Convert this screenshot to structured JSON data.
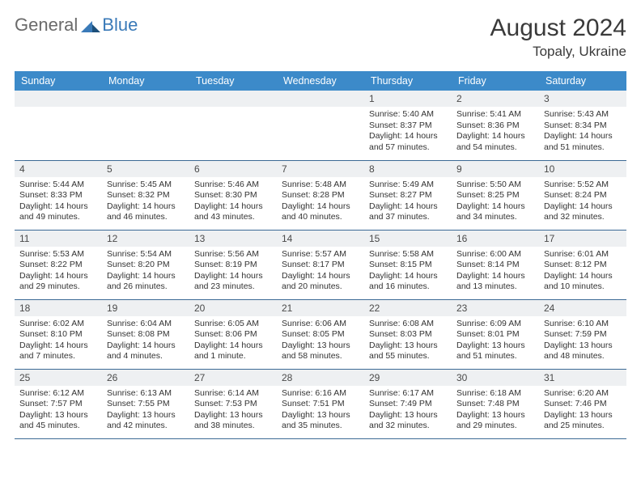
{
  "logo": {
    "text1": "General",
    "text2": "Blue"
  },
  "title": "August 2024",
  "location": "Topaly, Ukraine",
  "colors": {
    "header_bg": "#3c8ac9",
    "header_fg": "#ffffff",
    "daynum_bg": "#eef0f2",
    "rule": "#3c6a95",
    "logo_blue": "#3a7ab8"
  },
  "weekdays": [
    "Sunday",
    "Monday",
    "Tuesday",
    "Wednesday",
    "Thursday",
    "Friday",
    "Saturday"
  ],
  "weeks": [
    [
      null,
      null,
      null,
      null,
      {
        "n": "1",
        "sr": "Sunrise: 5:40 AM",
        "ss": "Sunset: 8:37 PM",
        "dl": "Daylight: 14 hours and 57 minutes."
      },
      {
        "n": "2",
        "sr": "Sunrise: 5:41 AM",
        "ss": "Sunset: 8:36 PM",
        "dl": "Daylight: 14 hours and 54 minutes."
      },
      {
        "n": "3",
        "sr": "Sunrise: 5:43 AM",
        "ss": "Sunset: 8:34 PM",
        "dl": "Daylight: 14 hours and 51 minutes."
      }
    ],
    [
      {
        "n": "4",
        "sr": "Sunrise: 5:44 AM",
        "ss": "Sunset: 8:33 PM",
        "dl": "Daylight: 14 hours and 49 minutes."
      },
      {
        "n": "5",
        "sr": "Sunrise: 5:45 AM",
        "ss": "Sunset: 8:32 PM",
        "dl": "Daylight: 14 hours and 46 minutes."
      },
      {
        "n": "6",
        "sr": "Sunrise: 5:46 AM",
        "ss": "Sunset: 8:30 PM",
        "dl": "Daylight: 14 hours and 43 minutes."
      },
      {
        "n": "7",
        "sr": "Sunrise: 5:48 AM",
        "ss": "Sunset: 8:28 PM",
        "dl": "Daylight: 14 hours and 40 minutes."
      },
      {
        "n": "8",
        "sr": "Sunrise: 5:49 AM",
        "ss": "Sunset: 8:27 PM",
        "dl": "Daylight: 14 hours and 37 minutes."
      },
      {
        "n": "9",
        "sr": "Sunrise: 5:50 AM",
        "ss": "Sunset: 8:25 PM",
        "dl": "Daylight: 14 hours and 34 minutes."
      },
      {
        "n": "10",
        "sr": "Sunrise: 5:52 AM",
        "ss": "Sunset: 8:24 PM",
        "dl": "Daylight: 14 hours and 32 minutes."
      }
    ],
    [
      {
        "n": "11",
        "sr": "Sunrise: 5:53 AM",
        "ss": "Sunset: 8:22 PM",
        "dl": "Daylight: 14 hours and 29 minutes."
      },
      {
        "n": "12",
        "sr": "Sunrise: 5:54 AM",
        "ss": "Sunset: 8:20 PM",
        "dl": "Daylight: 14 hours and 26 minutes."
      },
      {
        "n": "13",
        "sr": "Sunrise: 5:56 AM",
        "ss": "Sunset: 8:19 PM",
        "dl": "Daylight: 14 hours and 23 minutes."
      },
      {
        "n": "14",
        "sr": "Sunrise: 5:57 AM",
        "ss": "Sunset: 8:17 PM",
        "dl": "Daylight: 14 hours and 20 minutes."
      },
      {
        "n": "15",
        "sr": "Sunrise: 5:58 AM",
        "ss": "Sunset: 8:15 PM",
        "dl": "Daylight: 14 hours and 16 minutes."
      },
      {
        "n": "16",
        "sr": "Sunrise: 6:00 AM",
        "ss": "Sunset: 8:14 PM",
        "dl": "Daylight: 14 hours and 13 minutes."
      },
      {
        "n": "17",
        "sr": "Sunrise: 6:01 AM",
        "ss": "Sunset: 8:12 PM",
        "dl": "Daylight: 14 hours and 10 minutes."
      }
    ],
    [
      {
        "n": "18",
        "sr": "Sunrise: 6:02 AM",
        "ss": "Sunset: 8:10 PM",
        "dl": "Daylight: 14 hours and 7 minutes."
      },
      {
        "n": "19",
        "sr": "Sunrise: 6:04 AM",
        "ss": "Sunset: 8:08 PM",
        "dl": "Daylight: 14 hours and 4 minutes."
      },
      {
        "n": "20",
        "sr": "Sunrise: 6:05 AM",
        "ss": "Sunset: 8:06 PM",
        "dl": "Daylight: 14 hours and 1 minute."
      },
      {
        "n": "21",
        "sr": "Sunrise: 6:06 AM",
        "ss": "Sunset: 8:05 PM",
        "dl": "Daylight: 13 hours and 58 minutes."
      },
      {
        "n": "22",
        "sr": "Sunrise: 6:08 AM",
        "ss": "Sunset: 8:03 PM",
        "dl": "Daylight: 13 hours and 55 minutes."
      },
      {
        "n": "23",
        "sr": "Sunrise: 6:09 AM",
        "ss": "Sunset: 8:01 PM",
        "dl": "Daylight: 13 hours and 51 minutes."
      },
      {
        "n": "24",
        "sr": "Sunrise: 6:10 AM",
        "ss": "Sunset: 7:59 PM",
        "dl": "Daylight: 13 hours and 48 minutes."
      }
    ],
    [
      {
        "n": "25",
        "sr": "Sunrise: 6:12 AM",
        "ss": "Sunset: 7:57 PM",
        "dl": "Daylight: 13 hours and 45 minutes."
      },
      {
        "n": "26",
        "sr": "Sunrise: 6:13 AM",
        "ss": "Sunset: 7:55 PM",
        "dl": "Daylight: 13 hours and 42 minutes."
      },
      {
        "n": "27",
        "sr": "Sunrise: 6:14 AM",
        "ss": "Sunset: 7:53 PM",
        "dl": "Daylight: 13 hours and 38 minutes."
      },
      {
        "n": "28",
        "sr": "Sunrise: 6:16 AM",
        "ss": "Sunset: 7:51 PM",
        "dl": "Daylight: 13 hours and 35 minutes."
      },
      {
        "n": "29",
        "sr": "Sunrise: 6:17 AM",
        "ss": "Sunset: 7:49 PM",
        "dl": "Daylight: 13 hours and 32 minutes."
      },
      {
        "n": "30",
        "sr": "Sunrise: 6:18 AM",
        "ss": "Sunset: 7:48 PM",
        "dl": "Daylight: 13 hours and 29 minutes."
      },
      {
        "n": "31",
        "sr": "Sunrise: 6:20 AM",
        "ss": "Sunset: 7:46 PM",
        "dl": "Daylight: 13 hours and 25 minutes."
      }
    ]
  ]
}
